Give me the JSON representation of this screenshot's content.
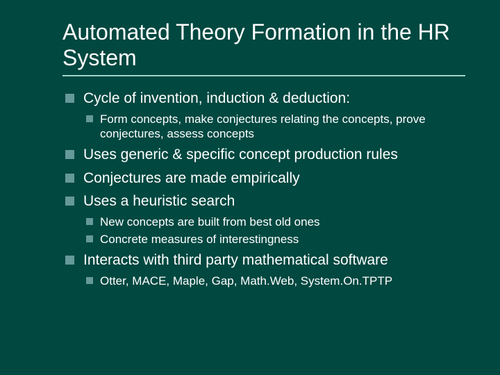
{
  "slide": {
    "background_color": "#004840",
    "text_color": "#ffffff",
    "bullet_color": "#669999",
    "underline_color": "#9fd8c8",
    "title_fontsize": 32,
    "level1_fontsize": 21,
    "level2_fontsize": 17,
    "font_family": "Verdana"
  },
  "title": "Automated Theory Formation in the HR System",
  "bullets": {
    "b1": "Cycle of invention, induction & deduction:",
    "b1_1": "Form concepts, make conjectures relating the concepts, prove conjectures, assess concepts",
    "b2": "Uses generic & specific concept production rules",
    "b3": "Conjectures are made empirically",
    "b4": "Uses a heuristic search",
    "b4_1": "New concepts are built from best old ones",
    "b4_2": "Concrete measures of interestingness",
    "b5": "Interacts with third party mathematical software",
    "b5_1": "Otter, MACE, Maple, Gap, Math.Web, System.On.TPTP"
  }
}
